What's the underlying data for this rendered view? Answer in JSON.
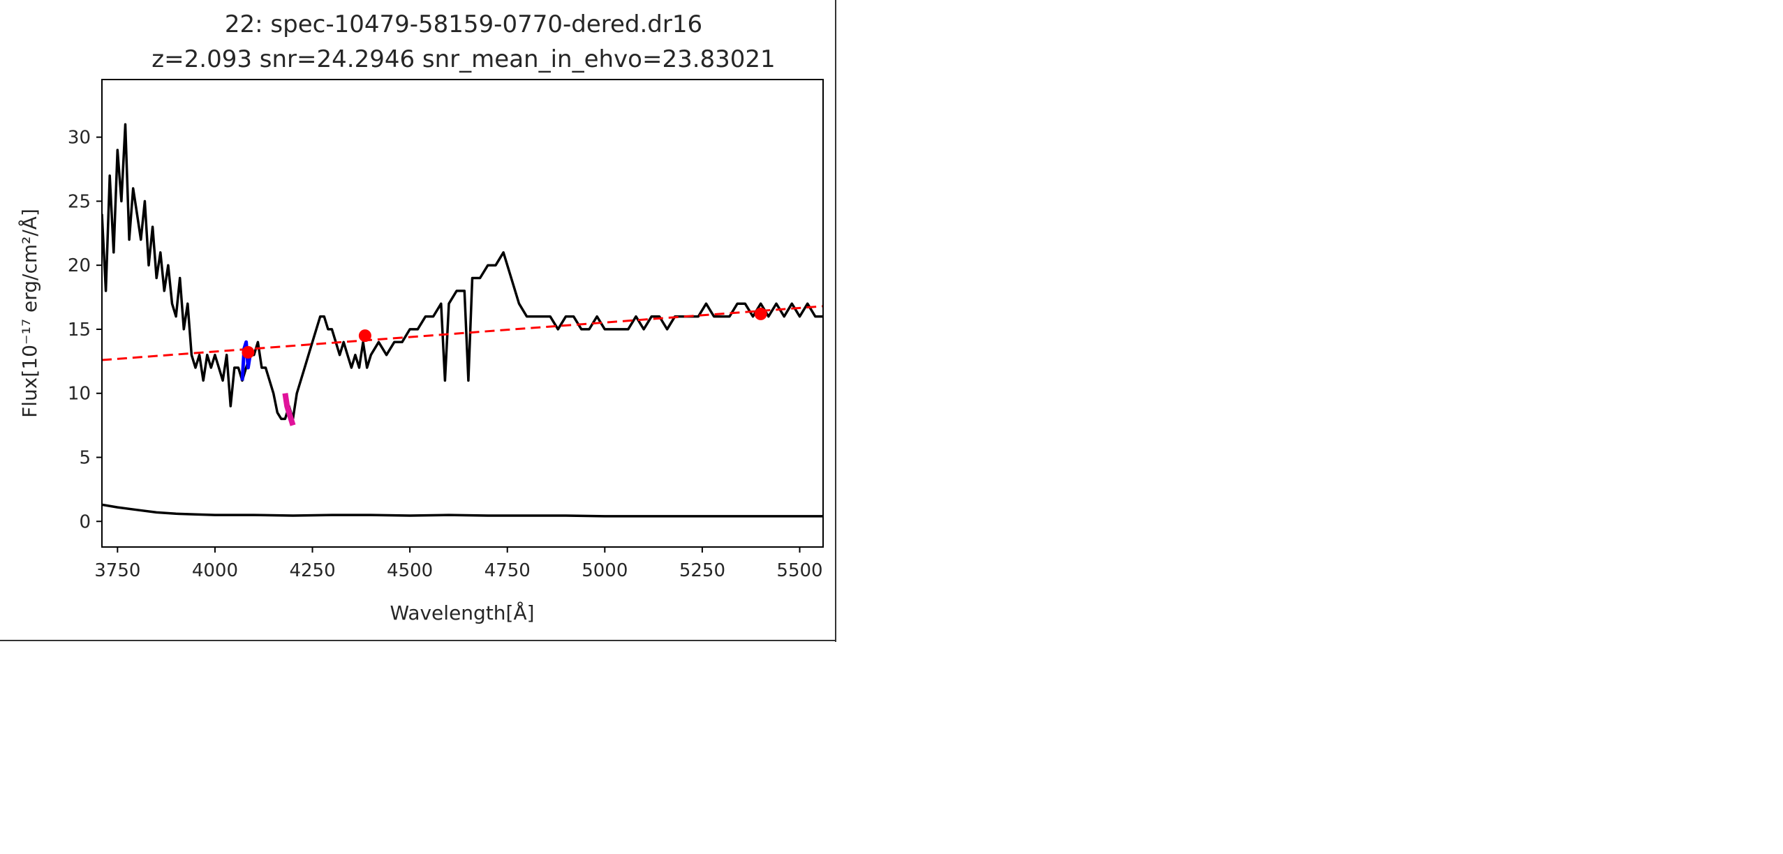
{
  "chart_data": {
    "type": "line",
    "title": "22: spec-10479-58159-0770-dered.dr16",
    "subtitle": "z=2.093 snr=24.2946 snr_mean_in_ehvo=23.83021",
    "xlabel": "Wavelength[Å]",
    "ylabel": "Flux[10⁻¹⁷ erg/cm²/Å]",
    "xlim": [
      3710,
      5560
    ],
    "ylim": [
      -2,
      34.5
    ],
    "x_ticks": [
      3750,
      4000,
      4250,
      4500,
      4750,
      5000,
      5250,
      5500
    ],
    "y_ticks": [
      0,
      5,
      10,
      15,
      20,
      25,
      30
    ],
    "grid": false,
    "colors": {
      "flux": "#000000",
      "error": "#000000",
      "continuum": "#ff0000",
      "anchor": "#ff0000",
      "absorption_blue": "#0000ff",
      "absorption_magenta": "#e0139a"
    },
    "series": [
      {
        "x": [
          3710,
          3720,
          3730,
          3740,
          3750,
          3760,
          3770,
          3780,
          3790,
          3800,
          3810,
          3820,
          3830,
          3840,
          3850,
          3860,
          3870,
          3880,
          3890,
          3900,
          3910,
          3920,
          3930,
          3940,
          3950,
          3960,
          3970,
          3980,
          3990,
          4000,
          4010,
          4020,
          4030,
          4040,
          4050,
          4060,
          4070,
          4080,
          4090,
          4100,
          4110,
          4120,
          4130,
          4140,
          4150,
          4160,
          4170,
          4180,
          4190,
          4200,
          4210,
          4220,
          4230,
          4240,
          4250,
          4260,
          4270,
          4280,
          4290,
          4300,
          4310,
          4320,
          4330,
          4340,
          4350,
          4360,
          4370,
          4380,
          4390,
          4400,
          4420,
          4440,
          4460,
          4480,
          4500,
          4520,
          4540,
          4560,
          4580,
          4590,
          4600,
          4620,
          4640,
          4650,
          4660,
          4670,
          4680,
          4700,
          4720,
          4740,
          4760,
          4780,
          4800,
          4820,
          4840,
          4860,
          4880,
          4900,
          4920,
          4940,
          4960,
          4980,
          5000,
          5020,
          5040,
          5060,
          5080,
          5100,
          5120,
          5140,
          5160,
          5180,
          5200,
          5220,
          5240,
          5260,
          5280,
          5300,
          5320,
          5340,
          5360,
          5380,
          5400,
          5420,
          5440,
          5460,
          5480,
          5500,
          5520,
          5540,
          5560
        ],
        "values": [
          24,
          18,
          27,
          21,
          29,
          25,
          31,
          22,
          26,
          24,
          22,
          25,
          20,
          23,
          19,
          21,
          18,
          20,
          17,
          16,
          19,
          15,
          17,
          13,
          12,
          13,
          11,
          13,
          12,
          13,
          12,
          11,
          13,
          9,
          12,
          12,
          11,
          12,
          13,
          13,
          14,
          12,
          12,
          11,
          10,
          8.5,
          8,
          8,
          9,
          8,
          10,
          11,
          12,
          13,
          14,
          15,
          16,
          16,
          15,
          15,
          14,
          13,
          14,
          13,
          12,
          13,
          12,
          14,
          12,
          13,
          14,
          13,
          14,
          14,
          15,
          15,
          16,
          16,
          17,
          11,
          17,
          18,
          18,
          11,
          19,
          19,
          19,
          20,
          20,
          21,
          19,
          17,
          16,
          16,
          16,
          16,
          15,
          16,
          16,
          15,
          15,
          16,
          15,
          15,
          15,
          15,
          16,
          15,
          16,
          16,
          15,
          16,
          16,
          16,
          16,
          17,
          16,
          16,
          16,
          17,
          17,
          16,
          17,
          16,
          17,
          16,
          17,
          16,
          17,
          16,
          16
        ]
      },
      {
        "x": [
          3710,
          3750,
          3800,
          3850,
          3900,
          3950,
          4000,
          4100,
          4200,
          4300,
          4400,
          4500,
          4600,
          4700,
          4800,
          4900,
          5000,
          5100,
          5200,
          5300,
          5400,
          5500,
          5560
        ],
        "values": [
          1.3,
          1.1,
          0.9,
          0.7,
          0.6,
          0.55,
          0.5,
          0.5,
          0.45,
          0.5,
          0.5,
          0.45,
          0.5,
          0.45,
          0.45,
          0.45,
          0.4,
          0.4,
          0.4,
          0.4,
          0.4,
          0.4,
          0.4
        ]
      },
      {
        "x": [
          3710,
          5560
        ],
        "values": [
          12.6,
          16.8
        ]
      },
      {
        "x": [
          4085,
          4385,
          5400
        ],
        "values": [
          13.2,
          14.5,
          16.2
        ]
      },
      {
        "x": [
          4070,
          4075,
          4080,
          4085,
          4090
        ],
        "values": [
          11,
          13.5,
          14,
          12,
          13
        ]
      },
      {
        "x": [
          4180,
          4185,
          4190,
          4195,
          4200
        ],
        "values": [
          10,
          9,
          8.5,
          8,
          7.5
        ]
      }
    ]
  }
}
